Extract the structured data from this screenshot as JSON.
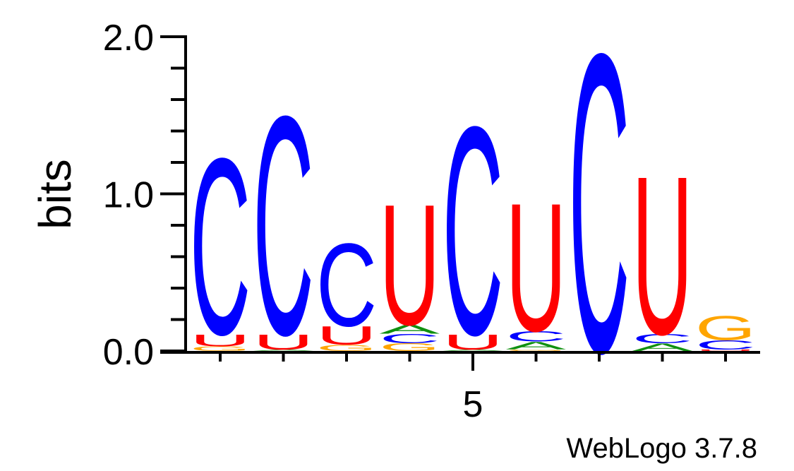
{
  "chart_data": {
    "type": "sequence-logo",
    "ylabel": "bits",
    "ylim": [
      0,
      2.0
    ],
    "y_ticks": [
      "0.0",
      "1.0",
      "2.0"
    ],
    "x_tick_labels": [
      {
        "position": 5,
        "label": "5"
      }
    ],
    "colors": {
      "A": "#109010",
      "C": "#0000ff",
      "G": "#ffa500",
      "U": "#ff0000"
    },
    "positions": [
      {
        "pos": 1,
        "stack": [
          {
            "letter": "G",
            "bits": 0.03
          },
          {
            "letter": "U",
            "bits": 0.08
          },
          {
            "letter": "C",
            "bits": 1.17
          }
        ]
      },
      {
        "pos": 2,
        "stack": [
          {
            "letter": "A",
            "bits": 0.01
          },
          {
            "letter": "U",
            "bits": 0.1
          },
          {
            "letter": "C",
            "bits": 1.45
          }
        ]
      },
      {
        "pos": 3,
        "stack": [
          {
            "letter": "G",
            "bits": 0.04
          },
          {
            "letter": "U",
            "bits": 0.12
          },
          {
            "letter": "C",
            "bits": 0.55
          }
        ]
      },
      {
        "pos": 4,
        "stack": [
          {
            "letter": "G",
            "bits": 0.05
          },
          {
            "letter": "C",
            "bits": 0.06
          },
          {
            "letter": "A",
            "bits": 0.06
          },
          {
            "letter": "U",
            "bits": 0.8
          }
        ]
      },
      {
        "pos": 5,
        "stack": [
          {
            "letter": "A",
            "bits": 0.01
          },
          {
            "letter": "U",
            "bits": 0.1
          },
          {
            "letter": "C",
            "bits": 1.38
          }
        ]
      },
      {
        "pos": 6,
        "stack": [
          {
            "letter": "G",
            "bits": 0.01
          },
          {
            "letter": "A",
            "bits": 0.05
          },
          {
            "letter": "C",
            "bits": 0.07
          },
          {
            "letter": "U",
            "bits": 0.85
          }
        ]
      },
      {
        "pos": 7,
        "stack": [
          {
            "letter": "C",
            "bits": 1.98
          }
        ]
      },
      {
        "pos": 8,
        "stack": [
          {
            "letter": "A",
            "bits": 0.05
          },
          {
            "letter": "C",
            "bits": 0.06
          },
          {
            "letter": "U",
            "bits": 1.05
          }
        ]
      },
      {
        "pos": 9,
        "stack": [
          {
            "letter": "U",
            "bits": 0.01
          },
          {
            "letter": "C",
            "bits": 0.06
          },
          {
            "letter": "G",
            "bits": 0.16
          }
        ]
      }
    ]
  },
  "footer": {
    "label": "WebLogo 3.7.8"
  }
}
